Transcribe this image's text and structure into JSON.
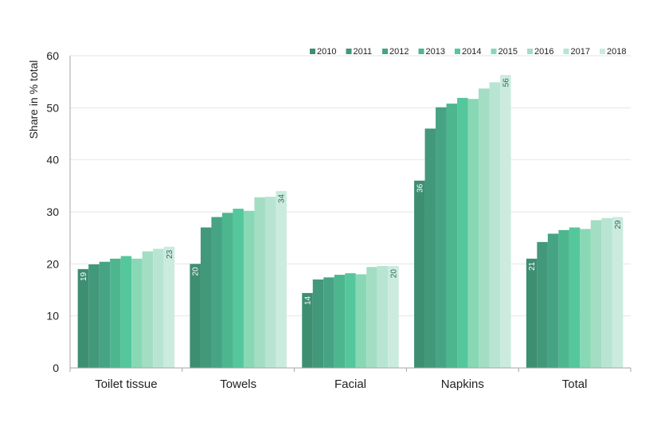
{
  "chart_data": {
    "type": "bar",
    "title": "",
    "xlabel": "",
    "ylabel": "Share in % total",
    "ylim": [
      0,
      60
    ],
    "yticks": [
      0,
      10,
      20,
      30,
      40,
      50,
      60
    ],
    "grid": true,
    "legend_position": "top-right",
    "categories": [
      "Toilet tissue",
      "Towels",
      "Facial",
      "Napkins",
      "Total"
    ],
    "series": [
      {
        "name": "2010",
        "color": "#3e8e72",
        "values": [
          19,
          20,
          14.4,
          36,
          21
        ]
      },
      {
        "name": "2011",
        "color": "#42987a",
        "values": [
          19.9,
          27,
          17,
          46,
          24.2
        ]
      },
      {
        "name": "2012",
        "color": "#46a383",
        "values": [
          20.4,
          29,
          17.4,
          50.1,
          25.8
        ]
      },
      {
        "name": "2013",
        "color": "#4db68e",
        "values": [
          21,
          29.8,
          17.9,
          50.8,
          26.5
        ]
      },
      {
        "name": "2014",
        "color": "#55c79d",
        "values": [
          21.5,
          30.6,
          18.2,
          51.9,
          27
        ]
      },
      {
        "name": "2015",
        "color": "#88d8b5",
        "values": [
          21,
          30.2,
          18,
          51.7,
          26.7
        ]
      },
      {
        "name": "2016",
        "color": "#a3ddc4",
        "values": [
          22.4,
          32.8,
          19.4,
          53.7,
          28.4
        ]
      },
      {
        "name": "2017",
        "color": "#b8e5d3",
        "values": [
          22.9,
          32.9,
          19.6,
          54.9,
          28.8
        ]
      },
      {
        "name": "2018",
        "color": "#cbebdf",
        "values": [
          23.3,
          34,
          19.6,
          56.3,
          29
        ]
      }
    ],
    "data_labels": [
      {
        "category": "Toilet tissue",
        "series": "2010",
        "text": "19"
      },
      {
        "category": "Toilet tissue",
        "series": "2018",
        "text": "23"
      },
      {
        "category": "Towels",
        "series": "2010",
        "text": "20"
      },
      {
        "category": "Towels",
        "series": "2018",
        "text": "34"
      },
      {
        "category": "Facial",
        "series": "2010",
        "text": "14"
      },
      {
        "category": "Facial",
        "series": "2018",
        "text": "20"
      },
      {
        "category": "Napkins",
        "series": "2010",
        "text": "36"
      },
      {
        "category": "Napkins",
        "series": "2018",
        "text": "56"
      },
      {
        "category": "Total",
        "series": "2010",
        "text": "21"
      },
      {
        "category": "Total",
        "series": "2018",
        "text": "29"
      }
    ],
    "colors": {
      "grid": "#e6e6e6",
      "axis": "#a6a6a6",
      "label_dark": "#2f6f57"
    }
  }
}
